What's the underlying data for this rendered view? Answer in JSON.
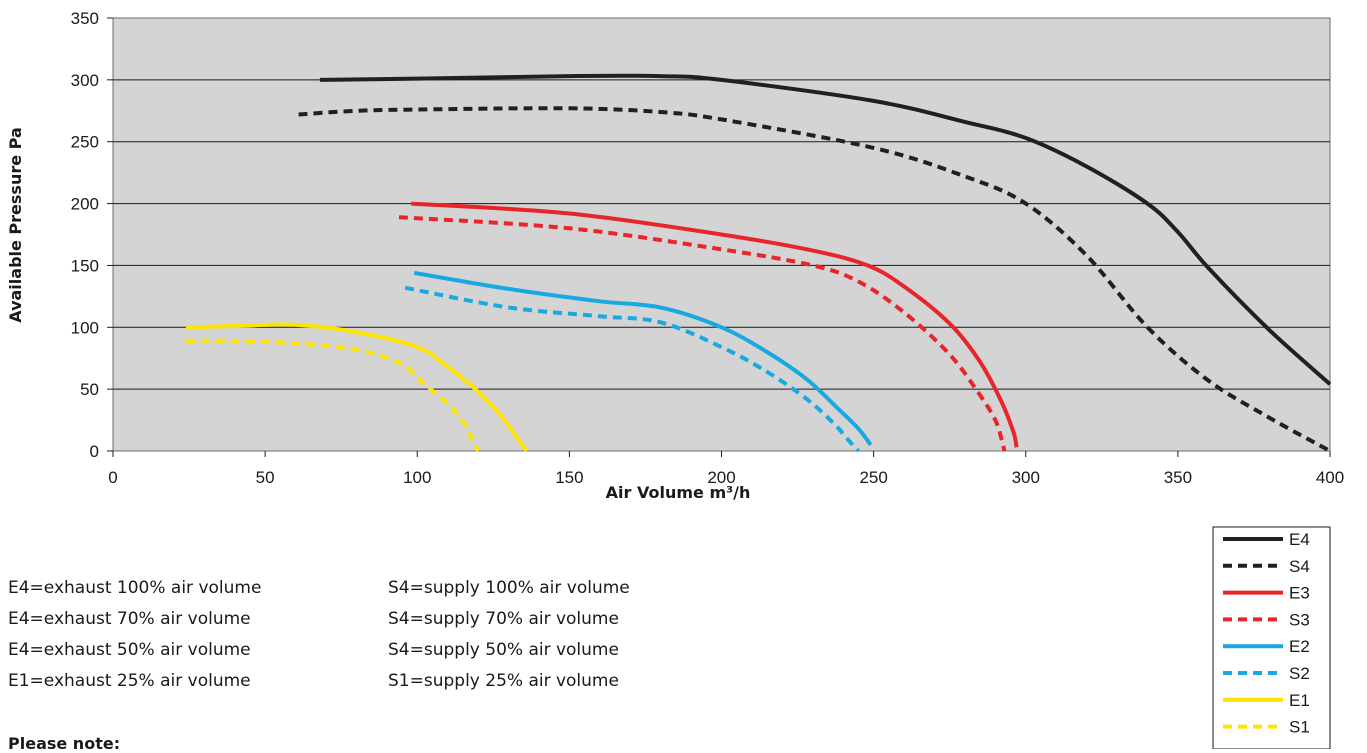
{
  "chart_data": {
    "type": "line",
    "title": "",
    "xlabel": "Air Volume m³/h",
    "ylabel": "Available Pressure Pa",
    "xlim": [
      0,
      400
    ],
    "ylim": [
      0,
      350
    ],
    "x_ticks": [
      0,
      50,
      100,
      150,
      200,
      250,
      300,
      350,
      400
    ],
    "y_ticks": [
      0,
      50,
      100,
      150,
      200,
      250,
      300,
      350
    ],
    "grid": "horizontal",
    "plot_background": "#d4d4d4",
    "legend_position": "bottom-right",
    "series": [
      {
        "name": "E4",
        "color": "#231f20",
        "dash": "solid",
        "x": [
          68,
          100,
          150,
          180,
          200,
          250,
          280,
          300,
          320,
          340,
          350,
          360,
          380,
          400
        ],
        "y": [
          300,
          301,
          303,
          303,
          300,
          283,
          266,
          253,
          230,
          200,
          177,
          148,
          98,
          54
        ]
      },
      {
        "name": "S4",
        "color": "#231f20",
        "dash": "dashed",
        "x": [
          61,
          80,
          100,
          150,
          180,
          200,
          250,
          280,
          300,
          320,
          340,
          360,
          380,
          400
        ],
        "y": [
          272,
          275,
          276,
          277,
          274,
          268,
          245,
          222,
          200,
          158,
          100,
          57,
          27,
          0
        ]
      },
      {
        "name": "E3",
        "color": "#e8252a",
        "dash": "solid",
        "x": [
          98,
          150,
          200,
          230,
          248,
          260,
          275,
          285,
          292,
          296,
          297
        ],
        "y": [
          200,
          192,
          175,
          162,
          150,
          133,
          103,
          72,
          40,
          15,
          3
        ]
      },
      {
        "name": "S3",
        "color": "#e8252a",
        "dash": "dashed",
        "x": [
          94,
          150,
          200,
          230,
          245,
          260,
          275,
          285,
          290,
          292,
          293
        ],
        "y": [
          189,
          180,
          163,
          150,
          137,
          112,
          78,
          45,
          25,
          10,
          0
        ]
      },
      {
        "name": "E2",
        "color": "#19a9e1",
        "dash": "solid",
        "x": [
          99,
          130,
          160,
          180,
          200,
          215,
          228,
          238,
          245,
          249
        ],
        "y": [
          144,
          131,
          121,
          116,
          100,
          80,
          58,
          35,
          18,
          5
        ]
      },
      {
        "name": "S2",
        "color": "#19a9e1",
        "dash": "dashed",
        "x": [
          96,
          130,
          160,
          180,
          200,
          215,
          228,
          237,
          242,
          245
        ],
        "y": [
          132,
          116,
          109,
          104,
          84,
          64,
          42,
          22,
          8,
          0
        ]
      },
      {
        "name": "E1",
        "color": "#fee400",
        "dash": "solid",
        "x": [
          24,
          40,
          60,
          80,
          100,
          110,
          120,
          128,
          133,
          136
        ],
        "y": [
          100,
          101,
          102,
          96,
          84,
          68,
          48,
          27,
          10,
          0
        ]
      },
      {
        "name": "S1",
        "color": "#fee400",
        "dash": "dashed",
        "x": [
          24,
          40,
          60,
          80,
          95,
          102,
          110,
          115,
          118,
          120
        ],
        "y": [
          89,
          89,
          87,
          82,
          70,
          55,
          38,
          24,
          10,
          0
        ]
      }
    ]
  },
  "notes": [
    {
      "left": "E4=exhaust 100% air volume",
      "right": "S4=supply 100% air volume"
    },
    {
      "left": "E4=exhaust 70% air volume",
      "right": "S4=supply 70% air volume"
    },
    {
      "left": "E4=exhaust 50% air volume",
      "right": "S4=supply 50% air volume"
    },
    {
      "left": "E1=exhaust 25% air volume",
      "right": "S1=supply 25% air volume"
    }
  ],
  "please_note": "Please note:"
}
